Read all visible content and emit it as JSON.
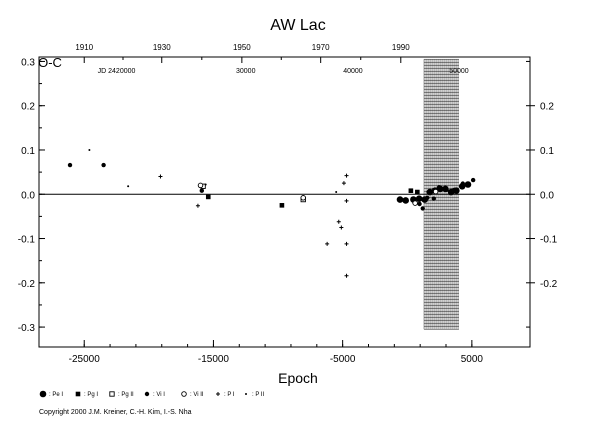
{
  "chart_data": {
    "type": "scatter",
    "title": "AW Lac",
    "xlabel": "Epoch",
    "ylabel": "O-C",
    "xlim": [
      -28500,
      9500
    ],
    "ylim": [
      -0.345,
      0.31
    ],
    "x_ticks": [
      {
        "v": -25000,
        "label": "-25000"
      },
      {
        "v": -15000,
        "label": "-15000"
      },
      {
        "v": -5000,
        "label": "-5000"
      },
      {
        "v": 5000,
        "label": "5000"
      }
    ],
    "y_ticks": [
      {
        "v": -0.3,
        "label": "-0.3"
      },
      {
        "v": -0.2,
        "label": "-0.2"
      },
      {
        "v": -0.1,
        "label": "-0.1"
      },
      {
        "v": 0.0,
        "label": "0.0"
      },
      {
        "v": 0.1,
        "label": "0.1"
      },
      {
        "v": 0.2,
        "label": "0.2"
      },
      {
        "v": 0.3,
        "label": "0.3"
      }
    ],
    "right_ticks": [
      {
        "v": -0.2,
        "label": "-0.2"
      },
      {
        "v": -0.1,
        "label": "-0.1"
      },
      {
        "v": 0.0,
        "label": "0.0"
      },
      {
        "v": 0.1,
        "label": "0.1"
      },
      {
        "v": 0.2,
        "label": "0.2"
      }
    ],
    "top_year_ticks": [
      {
        "v": -25000,
        "label": "1910"
      },
      {
        "v": -19000,
        "label": "1930"
      },
      {
        "v": -12800,
        "label": "1950"
      },
      {
        "v": -6700,
        "label": "1970"
      },
      {
        "v": -500,
        "label": "1990"
      }
    ],
    "top_jd_labels": [
      {
        "v": -22500,
        "label": "JD 2420000"
      },
      {
        "v": -12500,
        "label": "30000"
      },
      {
        "v": -4200,
        "label": "40000"
      },
      {
        "v": 4000,
        "label": "50000"
      }
    ],
    "zero_line": true,
    "future_band": {
      "x_start": 1300,
      "x_end": 4000,
      "y_top": 0.305,
      "y_bottom": -0.305
    },
    "series": [
      {
        "name": "Pe I",
        "marker": "big-dot",
        "x": [
          -560,
          -120,
          480,
          920,
          1350,
          1750,
          2150,
          2550,
          2950,
          3400,
          3800,
          4250,
          4700
        ],
        "y": [
          -0.012,
          -0.014,
          -0.012,
          -0.01,
          -0.012,
          0.005,
          0.008,
          0.012,
          0.012,
          0.005,
          0.008,
          0.018,
          0.022
        ]
      },
      {
        "name": "Pg I",
        "marker": "square",
        "x": [
          -15400,
          -9700,
          280,
          780
        ],
        "y": [
          -0.006,
          -0.025,
          0.008,
          0.005
        ]
      },
      {
        "name": "Pg II",
        "marker": "open-square",
        "x": [
          -15800,
          -8050
        ],
        "y": [
          0.018,
          -0.012
        ]
      },
      {
        "name": "Vi I",
        "marker": "dot",
        "x": [
          -26100,
          -23500,
          -15900,
          420,
          950,
          1200,
          1550,
          2050,
          2450,
          3050,
          3650,
          4300,
          5100
        ],
        "y": [
          0.066,
          0.066,
          0.008,
          -0.01,
          -0.022,
          -0.032,
          -0.008,
          -0.01,
          0.015,
          0.01,
          0.01,
          0.024,
          0.032
        ]
      },
      {
        "name": "Vi II",
        "marker": "open-circle",
        "x": [
          -16000,
          -8050,
          610,
          2200
        ],
        "y": [
          0.02,
          -0.008,
          -0.02,
          0.006
        ]
      },
      {
        "name": "P I",
        "marker": "cross",
        "x": [
          -19100,
          -16200,
          -5300,
          -5100,
          -4700,
          -4700,
          -4900,
          -6200,
          -4700,
          -4700
        ],
        "y": [
          0.04,
          -0.026,
          -0.062,
          -0.075,
          0.042,
          -0.015,
          0.025,
          -0.112,
          -0.112,
          -0.184
        ]
      },
      {
        "name": "P II",
        "marker": "small-dot",
        "x": [
          -24600,
          -21600,
          -15600,
          -5500,
          3300
        ],
        "y": [
          0.1,
          0.018,
          0.022,
          0.005,
          0.0
        ]
      }
    ],
    "legend": {
      "placement": "bottom-left",
      "items": [
        {
          "marker": "big-dot",
          "label": ": Pe I"
        },
        {
          "marker": "square",
          "label": ": Pg I"
        },
        {
          "marker": "open-square",
          "label": ": Pg II"
        },
        {
          "marker": "dot",
          "label": ": Vi I"
        },
        {
          "marker": "open-circle",
          "label": ": Vi II"
        },
        {
          "marker": "cross",
          "label": ": P I"
        },
        {
          "marker": "small-dot",
          "label": ": P II"
        }
      ]
    }
  },
  "copyright": "Copyright 2000 J.M. Kreiner, C.-H. Kim, I.-S. Nha"
}
